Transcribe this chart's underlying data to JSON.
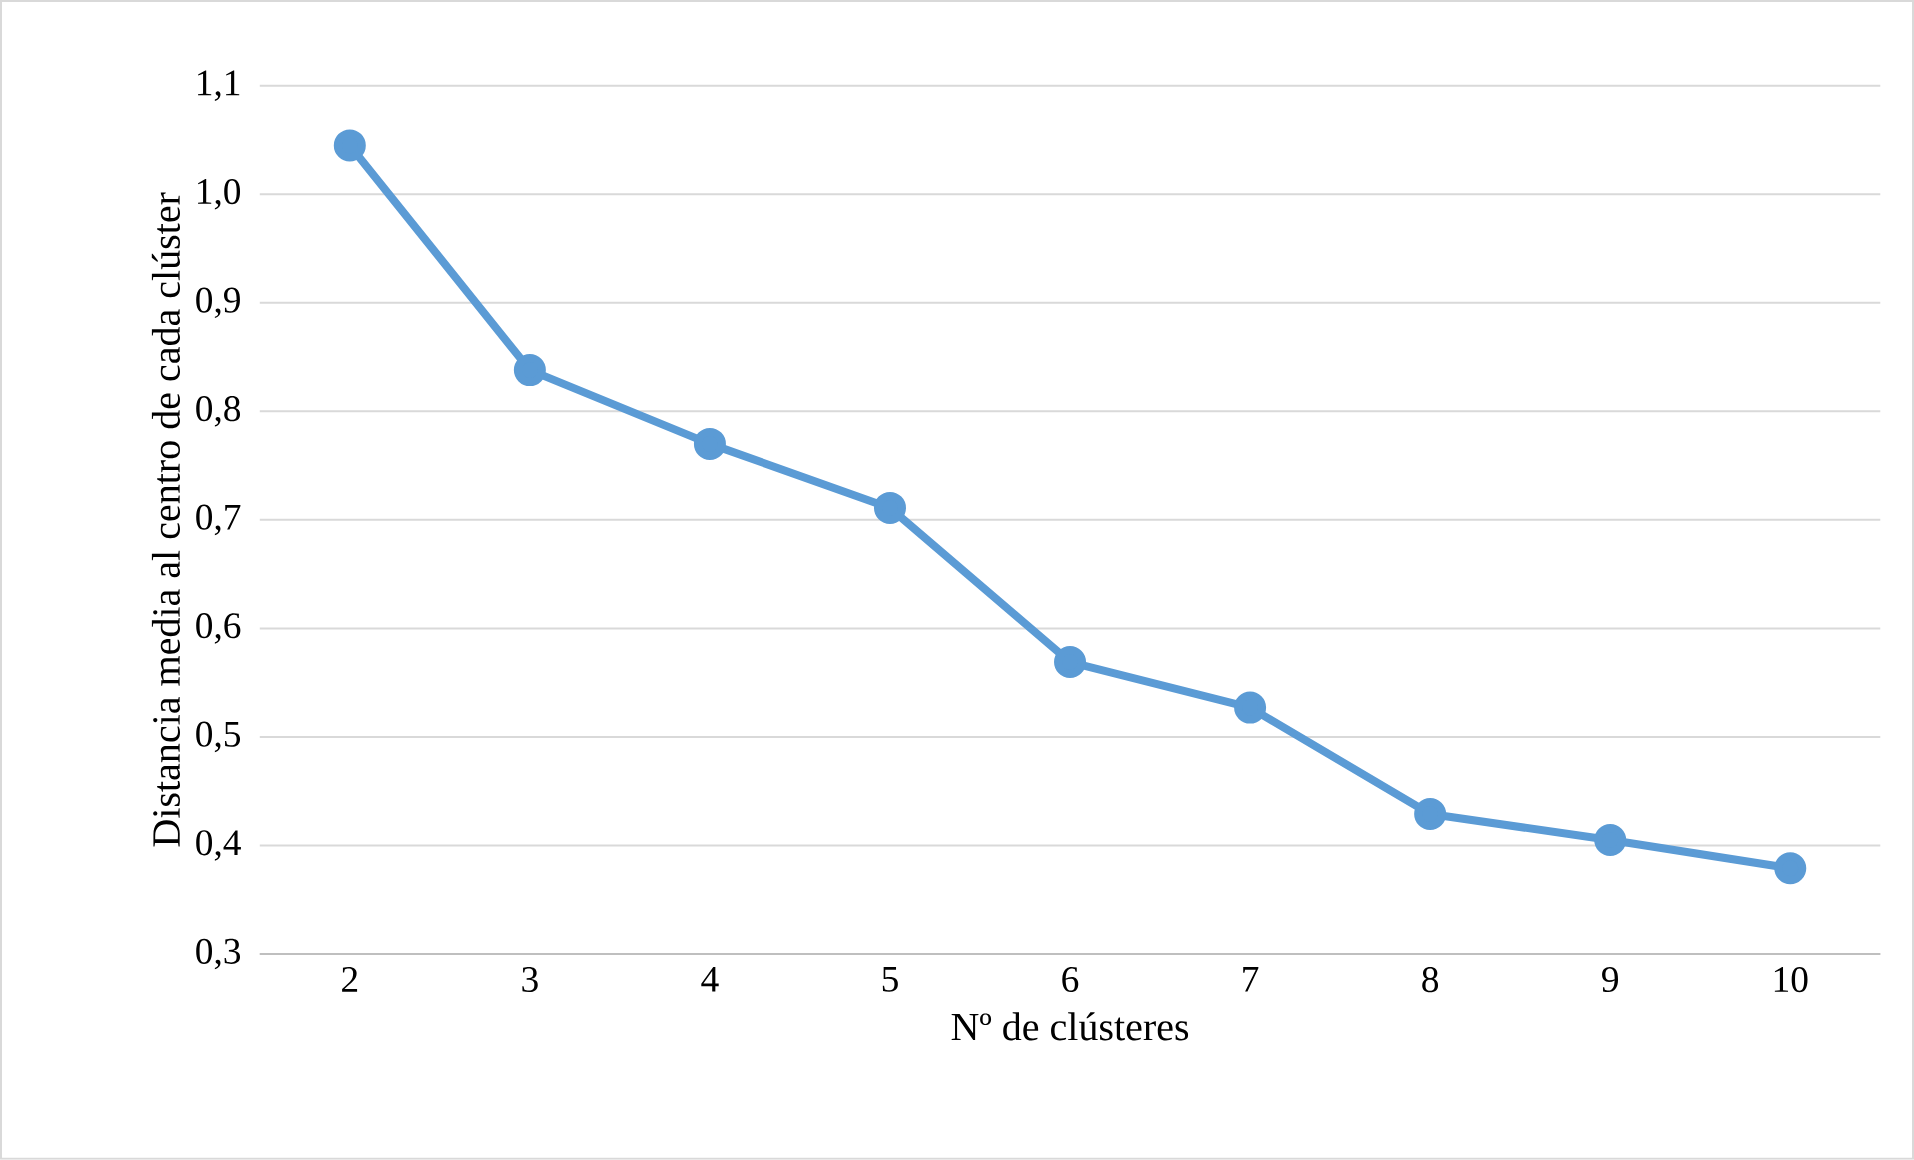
{
  "chart_data": {
    "type": "line",
    "xlabel": "Nº de clústeres",
    "ylabel": "Distancia media al centro de cada clúster",
    "categories": [
      "2",
      "3",
      "4",
      "5",
      "6",
      "7",
      "8",
      "9",
      "10"
    ],
    "values": [
      1.045,
      0.838,
      0.77,
      0.711,
      0.569,
      0.527,
      0.429,
      0.405,
      0.379
    ],
    "color": "#5b9bd5",
    "marker": "circle",
    "line_style": "solid",
    "grid": "y",
    "ylim": [
      0.3,
      1.1
    ],
    "yticks": [
      {
        "value": 0.3,
        "label": "0,3"
      },
      {
        "value": 0.4,
        "label": "0,4"
      },
      {
        "value": 0.5,
        "label": "0,5"
      },
      {
        "value": 0.6,
        "label": "0,6"
      },
      {
        "value": 0.7,
        "label": "0,7"
      },
      {
        "value": 0.8,
        "label": "0,8"
      },
      {
        "value": 0.9,
        "label": "0,9"
      },
      {
        "value": 1.0,
        "label": "1,0"
      },
      {
        "value": 1.1,
        "label": "1,1"
      }
    ]
  }
}
